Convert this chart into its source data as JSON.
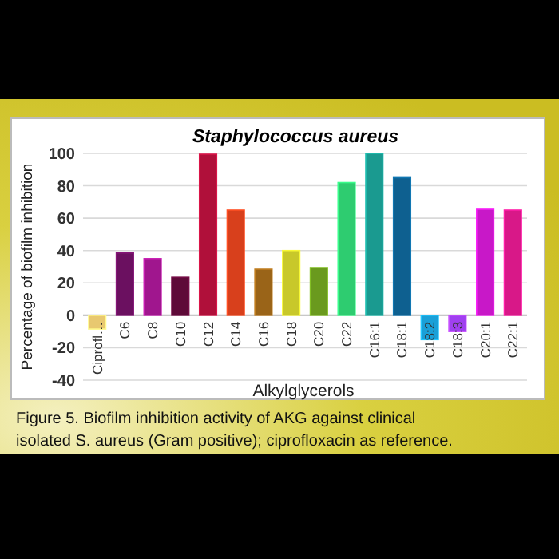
{
  "chart_data": {
    "type": "bar",
    "title": "Staphylococcus aureus",
    "xlabel": "Alkylglycerols",
    "ylabel": "Percentage of biofilm inhibition",
    "categories": [
      "Ciprofl…",
      "C6",
      "C8",
      "C10",
      "C12",
      "C14",
      "C16",
      "C18",
      "C20",
      "C22",
      "C16:1",
      "C18:1",
      "C18:2",
      "C18:3",
      "C20:1",
      "C22:1"
    ],
    "values": [
      -8.5,
      38.5,
      35,
      23.5,
      99.5,
      65,
      28.5,
      40,
      29.5,
      82,
      100,
      85,
      -15,
      -10,
      65.5,
      65
    ],
    "colors": [
      "#e8c870",
      "#6b1060",
      "#a0168e",
      "#5e0a38",
      "#b0103a",
      "#d8401c",
      "#9a6418",
      "#c8c82a",
      "#6a9a1e",
      "#2ecc70",
      "#1a9a90",
      "#0e6090",
      "#1aa0d8",
      "#a040f0",
      "#c818c8",
      "#d81888"
    ],
    "ylim": [
      -40,
      100
    ],
    "yticks": [
      -40,
      -20,
      0,
      20,
      40,
      60,
      80,
      100
    ],
    "grid": "y",
    "annotations": [
      "Figure 5. Biofilm inhibition activity of AKG against clinical",
      "isolated S. aureus (Gram positive); ciprofloxacin as reference."
    ]
  }
}
